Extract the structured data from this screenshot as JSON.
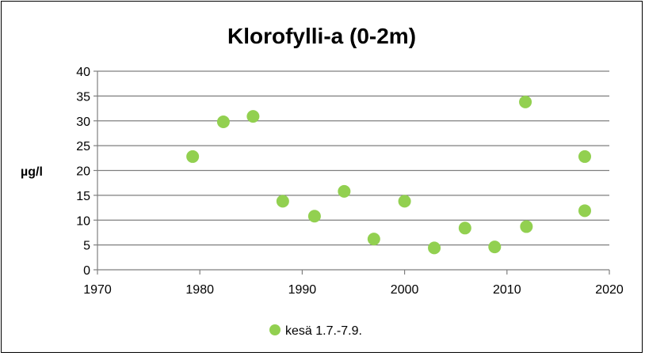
{
  "chart_data": {
    "type": "scatter",
    "title": "Klorofylli-a (0-2m)",
    "xlabel": "",
    "ylabel": "µg/l",
    "xlim": [
      1970,
      2020
    ],
    "ylim": [
      0,
      40
    ],
    "x_ticks": [
      1970,
      1980,
      1990,
      2000,
      2010,
      2020
    ],
    "y_ticks": [
      0,
      5,
      10,
      15,
      20,
      25,
      30,
      35,
      40
    ],
    "grid": "horizontal",
    "legend_position": "bottom",
    "series": [
      {
        "name": "kesä 1.7.-7.9.",
        "color": "#92D050",
        "points": [
          {
            "x": 1979.3,
            "y": 22.8
          },
          {
            "x": 1982.3,
            "y": 29.8
          },
          {
            "x": 1985.2,
            "y": 30.9
          },
          {
            "x": 1988.1,
            "y": 13.8
          },
          {
            "x": 1991.2,
            "y": 10.8
          },
          {
            "x": 1994.1,
            "y": 15.8
          },
          {
            "x": 1997.0,
            "y": 6.2
          },
          {
            "x": 2000.0,
            "y": 13.8
          },
          {
            "x": 2002.9,
            "y": 4.4
          },
          {
            "x": 2005.9,
            "y": 8.4
          },
          {
            "x": 2008.8,
            "y": 4.6
          },
          {
            "x": 2011.8,
            "y": 33.8
          },
          {
            "x": 2011.9,
            "y": 8.7
          },
          {
            "x": 2017.6,
            "y": 22.8
          },
          {
            "x": 2017.6,
            "y": 11.9
          }
        ]
      }
    ]
  }
}
